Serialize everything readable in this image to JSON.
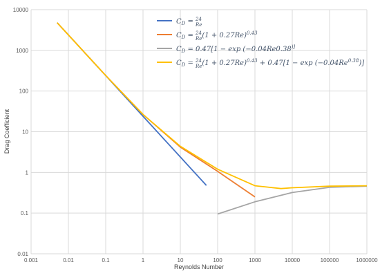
{
  "chart_data": {
    "type": "line",
    "xscale": "log",
    "yscale": "log",
    "xlim": [
      0.001,
      1000000
    ],
    "ylim": [
      0.01,
      10000
    ],
    "xlabel": "Reynolds Number",
    "ylabel": "Drag Coefficient",
    "grid": true,
    "legend_position": "top-right",
    "xticks": [
      "0.001",
      "0.01",
      "0.1",
      "1",
      "10",
      "100",
      "1000",
      "10000",
      "100000",
      "1000000"
    ],
    "yticks": [
      "0.01",
      "0.1",
      "1",
      "10",
      "100",
      "1000",
      "10000"
    ],
    "series": [
      {
        "legend": [
          "C",
          "D",
          " = ",
          "24",
          "Re",
          ""
        ],
        "color": "#4472c4",
        "points": [
          [
            0.005,
            4800
          ],
          [
            0.01,
            2400
          ],
          [
            0.1,
            240
          ],
          [
            1,
            24
          ],
          [
            10,
            2.4
          ],
          [
            50,
            0.48
          ]
        ]
      },
      {
        "legend": [
          "C",
          "D",
          " = ",
          "24",
          "Re",
          "(1 + 0.27Re)",
          "0.43"
        ],
        "color": "#ed7d31",
        "points": [
          [
            0.005,
            4800
          ],
          [
            0.01,
            2400
          ],
          [
            0.1,
            241
          ],
          [
            1,
            26.6
          ],
          [
            10,
            4.2
          ],
          [
            100,
            1.06
          ],
          [
            1000,
            0.25
          ]
        ]
      },
      {
        "legend": [
          "C",
          "D",
          " = 0.47[1 − exp (−0.04Re",
          "0.38",
          ")]"
        ],
        "color": "#a5a5a5",
        "points": [
          [
            100,
            0.095
          ],
          [
            1000,
            0.19
          ],
          [
            10000,
            0.32
          ],
          [
            100000,
            0.43
          ],
          [
            1000000,
            0.46
          ]
        ]
      },
      {
        "legend": [
          "C",
          "D",
          " = ",
          "24",
          "Re",
          "(1 + 0.27Re)",
          "0.43",
          " + 0.47[1 − exp (−0.04Re",
          "0.38",
          ")]"
        ],
        "color": "#ffc000",
        "points": [
          [
            0.005,
            4800
          ],
          [
            0.01,
            2400
          ],
          [
            0.1,
            241
          ],
          [
            1,
            26.6
          ],
          [
            10,
            4.4
          ],
          [
            100,
            1.2
          ],
          [
            1000,
            0.47
          ],
          [
            5000,
            0.4
          ],
          [
            10000,
            0.42
          ],
          [
            100000,
            0.46
          ],
          [
            1000000,
            0.47
          ]
        ]
      }
    ]
  }
}
